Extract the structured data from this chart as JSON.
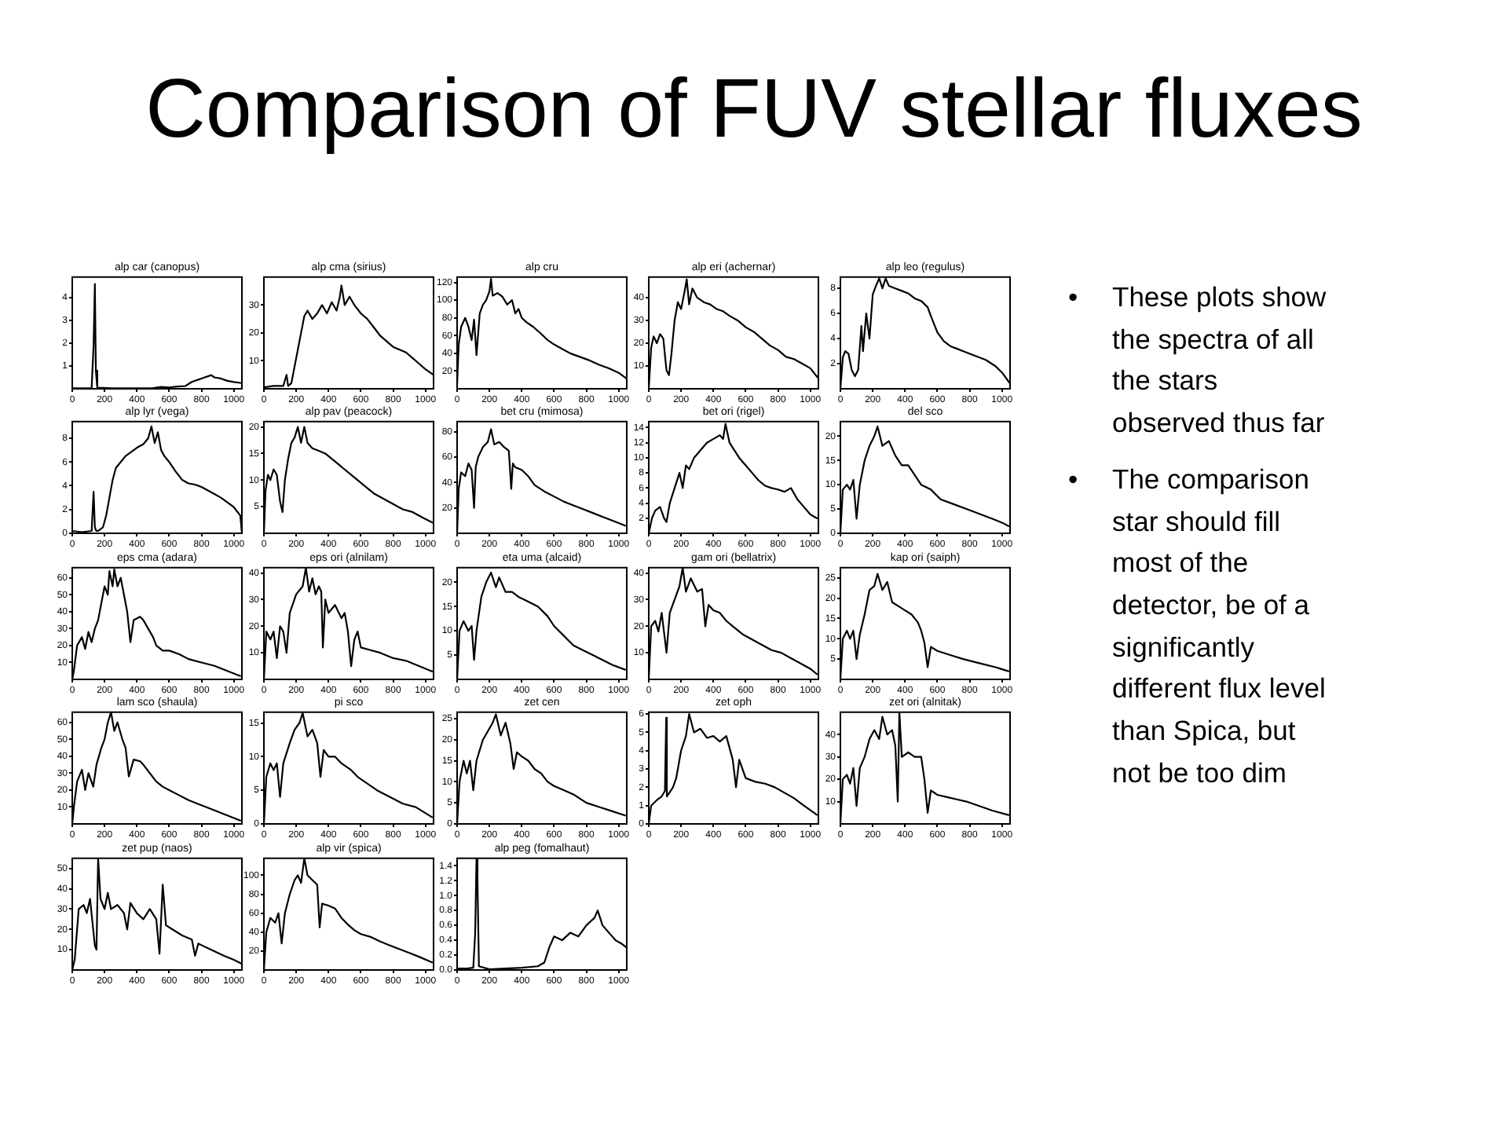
{
  "chart_data": [
    {
      "type": "line",
      "title": "alp car (canopus)",
      "x": [
        0,
        60,
        120,
        132,
        140,
        146,
        155,
        250,
        400,
        500,
        550,
        600,
        650,
        700,
        740,
        780,
        820,
        860,
        880,
        920,
        960,
        1000,
        1050
      ],
      "values": [
        0.02,
        0.02,
        0.03,
        1.9,
        4.6,
        0.8,
        0.05,
        0.02,
        0.02,
        0.03,
        0.08,
        0.06,
        0.1,
        0.12,
        0.3,
        0.4,
        0.5,
        0.6,
        0.5,
        0.45,
        0.35,
        0.3,
        0.25
      ],
      "color": "#000000",
      "xlim": [
        0,
        1050
      ],
      "xticks": [
        0,
        200,
        400,
        600,
        800,
        1000
      ],
      "ylim": [
        0,
        4.9
      ],
      "yticks": [
        1,
        2,
        3,
        4
      ]
    },
    {
      "type": "line",
      "title": "alp cma (sirius)",
      "x": [
        0,
        60,
        120,
        140,
        150,
        170,
        190,
        210,
        230,
        250,
        270,
        300,
        330,
        360,
        390,
        420,
        450,
        470,
        480,
        500,
        530,
        560,
        600,
        640,
        680,
        720,
        760,
        800,
        840,
        880,
        920,
        960,
        1000,
        1050
      ],
      "values": [
        0.5,
        1,
        1,
        5,
        1,
        2,
        8,
        14,
        20,
        26,
        28,
        25,
        27,
        30,
        27,
        31,
        28,
        33,
        37,
        30,
        33,
        30,
        27,
        25,
        22,
        19,
        17,
        15,
        14,
        13,
        11,
        9,
        7,
        5
      ],
      "color": "#000000",
      "xlim": [
        0,
        1050
      ],
      "xticks": [
        0,
        200,
        400,
        600,
        800,
        1000
      ],
      "ylim": [
        0,
        40
      ],
      "yticks": [
        10,
        20,
        30
      ]
    },
    {
      "type": "line",
      "title": "alp cru",
      "x": [
        0,
        10,
        25,
        50,
        70,
        90,
        105,
        120,
        140,
        160,
        180,
        200,
        210,
        220,
        250,
        280,
        310,
        340,
        360,
        380,
        400,
        430,
        470,
        520,
        560,
        600,
        650,
        700,
        760,
        820,
        880,
        940,
        1000,
        1045
      ],
      "values": [
        5,
        50,
        70,
        80,
        70,
        55,
        78,
        38,
        85,
        95,
        100,
        110,
        124,
        105,
        108,
        104,
        95,
        100,
        85,
        90,
        80,
        75,
        70,
        62,
        55,
        50,
        45,
        40,
        36,
        32,
        27,
        23,
        18,
        12
      ],
      "color": "#000000",
      "xlim": [
        0,
        1050
      ],
      "xticks": [
        0,
        200,
        400,
        600,
        800,
        1000
      ],
      "ylim": [
        0,
        126
      ],
      "yticks": [
        20,
        40,
        60,
        80,
        100,
        120
      ]
    },
    {
      "type": "line",
      "title": "alp eri (achernar)",
      "x": [
        0,
        15,
        30,
        50,
        70,
        90,
        110,
        125,
        140,
        160,
        180,
        200,
        220,
        235,
        250,
        270,
        300,
        340,
        380,
        420,
        460,
        500,
        550,
        600,
        650,
        700,
        750,
        800,
        850,
        900,
        950,
        1000,
        1045
      ],
      "values": [
        0,
        18,
        23,
        20,
        24,
        22,
        8,
        6,
        15,
        30,
        38,
        35,
        42,
        48,
        37,
        44,
        40,
        38,
        37,
        35,
        34,
        32,
        30,
        27,
        25,
        22,
        19,
        17,
        14,
        13,
        11,
        9,
        5
      ],
      "color": "#000000",
      "xlim": [
        0,
        1050
      ],
      "xticks": [
        0,
        200,
        400,
        600,
        800,
        1000
      ],
      "ylim": [
        0,
        49
      ],
      "yticks": [
        10,
        20,
        30,
        40
      ]
    },
    {
      "type": "line",
      "title": "alp leo (regulus)",
      "x": [
        0,
        15,
        30,
        50,
        70,
        90,
        110,
        130,
        140,
        160,
        180,
        200,
        220,
        240,
        260,
        280,
        300,
        340,
        380,
        420,
        460,
        500,
        540,
        560,
        600,
        640,
        680,
        720,
        780,
        840,
        900,
        960,
        1000,
        1045
      ],
      "values": [
        0,
        2.5,
        3,
        2.8,
        1.5,
        1,
        1.5,
        5,
        3,
        6,
        4,
        7.5,
        8.2,
        8.8,
        8,
        8.8,
        8.2,
        8,
        7.8,
        7.6,
        7.2,
        7,
        6.5,
        5.8,
        4.5,
        3.8,
        3.4,
        3.2,
        2.9,
        2.6,
        2.3,
        1.8,
        1.3,
        0.5
      ],
      "color": "#000000",
      "xlim": [
        0,
        1050
      ],
      "xticks": [
        0,
        200,
        400,
        600,
        800,
        1000
      ],
      "ylim": [
        0,
        8.9
      ],
      "yticks": [
        2,
        4,
        6,
        8
      ]
    },
    {
      "type": "line",
      "title": "alp lyr (vega)",
      "x": [
        0,
        60,
        120,
        132,
        140,
        148,
        160,
        190,
        210,
        230,
        250,
        270,
        300,
        330,
        360,
        400,
        440,
        470,
        490,
        510,
        530,
        550,
        570,
        600,
        640,
        680,
        720,
        760,
        800,
        840,
        880,
        920,
        960,
        1000,
        1040,
        1050
      ],
      "values": [
        0.2,
        0.1,
        0.2,
        3.5,
        0.5,
        0.2,
        0.2,
        0.5,
        1.5,
        3,
        4.5,
        5.5,
        6,
        6.5,
        6.8,
        7.2,
        7.5,
        8,
        9,
        7.6,
        8.5,
        7,
        6.5,
        6,
        5.2,
        4.5,
        4.2,
        4.1,
        3.9,
        3.6,
        3.3,
        3,
        2.6,
        2.2,
        1.5,
        0
      ],
      "color": "#000000",
      "xlim": [
        0,
        1050
      ],
      "xticks": [
        0,
        200,
        400,
        600,
        800,
        1000
      ],
      "ylim": [
        0,
        9.4
      ],
      "yticks": [
        0,
        2,
        4,
        6,
        8
      ]
    },
    {
      "type": "line",
      "title": "alp pav (peacock)",
      "x": [
        0,
        10,
        25,
        40,
        60,
        80,
        100,
        115,
        130,
        150,
        170,
        190,
        210,
        230,
        250,
        270,
        300,
        340,
        380,
        420,
        460,
        500,
        560,
        620,
        680,
        740,
        800,
        860,
        920,
        980,
        1045
      ],
      "values": [
        0,
        8,
        11,
        10,
        12,
        11,
        6,
        4,
        10,
        14,
        17,
        18,
        20,
        17,
        20,
        17,
        16,
        15.5,
        15,
        14,
        13,
        12,
        10.5,
        9,
        7.5,
        6.5,
        5.5,
        4.5,
        4,
        3,
        2
      ],
      "color": "#000000",
      "xlim": [
        0,
        1050
      ],
      "xticks": [
        0,
        200,
        400,
        600,
        800,
        1000
      ],
      "ylim": [
        0,
        21
      ],
      "yticks": [
        5,
        10,
        15,
        20
      ]
    },
    {
      "type": "line",
      "title": "bet cru (mimosa)",
      "x": [
        0,
        10,
        25,
        50,
        70,
        90,
        105,
        115,
        130,
        160,
        190,
        210,
        230,
        260,
        290,
        320,
        335,
        345,
        360,
        400,
        440,
        480,
        540,
        600,
        660,
        720,
        780,
        840,
        900,
        960,
        1040
      ],
      "values": [
        0,
        35,
        48,
        45,
        55,
        50,
        20,
        52,
        60,
        68,
        72,
        82,
        70,
        72,
        68,
        65,
        35,
        55,
        52,
        50,
        45,
        38,
        33,
        29,
        25,
        22,
        19,
        16,
        13,
        10,
        6
      ],
      "color": "#000000",
      "xlim": [
        0,
        1050
      ],
      "xticks": [
        0,
        200,
        400,
        600,
        800,
        1000
      ],
      "ylim": [
        0,
        88
      ],
      "yticks": [
        20,
        40,
        60,
        80
      ]
    },
    {
      "type": "line",
      "title": "bet ori (rigel)",
      "x": [
        0,
        20,
        40,
        70,
        95,
        110,
        130,
        160,
        190,
        210,
        230,
        250,
        280,
        320,
        360,
        400,
        440,
        460,
        475,
        500,
        530,
        560,
        600,
        640,
        680,
        720,
        760,
        800,
        840,
        880,
        920,
        960,
        1000,
        1040
      ],
      "values": [
        0,
        2,
        3,
        3.5,
        2,
        1.5,
        4,
        6,
        8,
        6,
        9,
        8.5,
        10,
        11,
        12,
        12.5,
        13,
        12.5,
        14.5,
        12,
        11,
        10,
        9,
        8,
        7,
        6.3,
        6,
        5.8,
        5.5,
        6,
        4.5,
        3.5,
        2.5,
        2
      ],
      "color": "#000000",
      "xlim": [
        0,
        1050
      ],
      "xticks": [
        0,
        200,
        400,
        600,
        800,
        1000
      ],
      "ylim": [
        0,
        14.8
      ],
      "yticks": [
        2,
        4,
        6,
        8,
        10,
        12,
        14
      ]
    },
    {
      "type": "line",
      "title": "del sco",
      "x": [
        0,
        15,
        40,
        60,
        80,
        100,
        120,
        150,
        180,
        210,
        230,
        260,
        300,
        340,
        380,
        420,
        460,
        500,
        560,
        620,
        700,
        780,
        860,
        940,
        1000,
        1040
      ],
      "values": [
        0,
        9,
        10,
        9,
        11,
        3,
        10,
        15,
        18,
        20,
        22,
        18,
        19,
        16,
        14,
        14,
        12,
        10,
        9,
        7,
        6,
        5,
        4,
        3,
        2.2,
        1.5
      ],
      "color": "#000000",
      "xlim": [
        0,
        1050
      ],
      "xticks": [
        0,
        200,
        400,
        600,
        800,
        1000
      ],
      "ylim": [
        0,
        23
      ],
      "yticks": [
        0,
        5,
        10,
        15,
        20
      ]
    },
    {
      "type": "line",
      "title": "eps cma (adara)",
      "x": [
        0,
        10,
        30,
        60,
        80,
        100,
        120,
        140,
        160,
        180,
        200,
        220,
        230,
        250,
        260,
        280,
        300,
        320,
        340,
        360,
        380,
        420,
        440,
        470,
        500,
        520,
        560,
        600,
        660,
        720,
        800,
        880,
        960,
        1040
      ],
      "values": [
        0,
        5,
        20,
        25,
        18,
        28,
        22,
        30,
        35,
        45,
        55,
        50,
        64,
        55,
        65,
        55,
        60,
        50,
        40,
        22,
        35,
        37,
        35,
        30,
        25,
        20,
        17,
        17,
        15,
        12,
        10,
        8,
        5,
        2
      ],
      "color": "#000000",
      "xlim": [
        0,
        1050
      ],
      "xticks": [
        0,
        200,
        400,
        600,
        800,
        1000
      ],
      "ylim": [
        0,
        66
      ],
      "yticks": [
        10,
        20,
        30,
        40,
        50,
        60
      ]
    },
    {
      "type": "line",
      "title": "eps ori (alnilam)",
      "x": [
        0,
        15,
        40,
        60,
        80,
        100,
        120,
        140,
        160,
        200,
        240,
        260,
        280,
        300,
        320,
        340,
        355,
        365,
        380,
        400,
        440,
        480,
        500,
        520,
        540,
        560,
        580,
        600,
        660,
        720,
        800,
        880,
        960,
        1040
      ],
      "values": [
        0,
        18,
        15,
        18,
        8,
        20,
        18,
        10,
        25,
        32,
        35,
        42,
        33,
        38,
        32,
        35,
        33,
        12,
        30,
        25,
        28,
        23,
        25,
        18,
        5,
        15,
        18,
        12,
        11,
        10,
        8,
        7,
        5,
        3
      ],
      "color": "#000000",
      "xlim": [
        0,
        1050
      ],
      "xticks": [
        0,
        200,
        400,
        600,
        800,
        1000
      ],
      "ylim": [
        0,
        42
      ],
      "yticks": [
        10,
        20,
        30,
        40
      ]
    },
    {
      "type": "line",
      "title": "eta uma (alcaid)",
      "x": [
        0,
        15,
        40,
        70,
        90,
        105,
        120,
        150,
        180,
        210,
        240,
        260,
        300,
        340,
        380,
        440,
        500,
        560,
        600,
        660,
        720,
        780,
        840,
        900,
        960,
        1040
      ],
      "values": [
        0,
        10,
        12,
        10,
        11,
        4,
        10,
        17,
        20,
        22,
        19,
        21,
        18,
        18,
        17,
        16,
        15,
        13,
        11,
        9,
        7,
        6,
        5,
        4,
        3,
        2
      ],
      "color": "#000000",
      "xlim": [
        0,
        1050
      ],
      "xticks": [
        0,
        200,
        400,
        600,
        800,
        1000
      ],
      "ylim": [
        0,
        23
      ],
      "yticks": [
        5,
        10,
        15,
        20
      ]
    },
    {
      "type": "line",
      "title": "gam ori (bellatrix)",
      "x": [
        0,
        15,
        40,
        60,
        80,
        110,
        130,
        160,
        190,
        210,
        230,
        260,
        300,
        330,
        350,
        370,
        400,
        440,
        480,
        520,
        580,
        640,
        700,
        760,
        820,
        880,
        940,
        1000,
        1040
      ],
      "values": [
        0,
        20,
        22,
        18,
        25,
        10,
        25,
        30,
        35,
        42,
        33,
        38,
        33,
        34,
        20,
        28,
        26,
        25,
        22,
        20,
        17,
        15,
        13,
        11,
        10,
        8,
        6,
        4,
        2
      ],
      "color": "#000000",
      "xlim": [
        0,
        1050
      ],
      "xticks": [
        0,
        200,
        400,
        600,
        800,
        1000
      ],
      "ylim": [
        0,
        42
      ],
      "yticks": [
        10,
        20,
        30,
        40
      ]
    },
    {
      "type": "line",
      "title": "kap ori (saiph)",
      "x": [
        0,
        15,
        40,
        60,
        80,
        100,
        120,
        150,
        180,
        210,
        230,
        260,
        290,
        320,
        360,
        400,
        440,
        480,
        500,
        520,
        540,
        560,
        600,
        680,
        760,
        860,
        960,
        1040
      ],
      "values": [
        0,
        10,
        12,
        10,
        12,
        5,
        11,
        16,
        22,
        23,
        26,
        22,
        24,
        19,
        18,
        17,
        16,
        14,
        12,
        9,
        3,
        8,
        7,
        6,
        5,
        4,
        3,
        2
      ],
      "color": "#000000",
      "xlim": [
        0,
        1050
      ],
      "xticks": [
        0,
        200,
        400,
        600,
        800,
        1000
      ],
      "ylim": [
        0,
        27.5
      ],
      "yticks": [
        5,
        10,
        15,
        20,
        25
      ]
    },
    {
      "type": "line",
      "title": "lam sco (shaula)",
      "x": [
        0,
        10,
        30,
        60,
        80,
        100,
        130,
        150,
        180,
        200,
        220,
        240,
        260,
        280,
        310,
        330,
        350,
        380,
        420,
        440,
        480,
        520,
        560,
        600,
        660,
        720,
        800,
        880,
        960,
        1040
      ],
      "values": [
        0,
        10,
        25,
        32,
        20,
        30,
        22,
        35,
        45,
        50,
        60,
        66,
        55,
        60,
        50,
        45,
        28,
        38,
        37,
        35,
        30,
        25,
        22,
        20,
        17,
        14,
        11,
        8,
        5,
        2
      ],
      "color": "#000000",
      "xlim": [
        0,
        1050
      ],
      "xticks": [
        0,
        200,
        400,
        600,
        800,
        1000
      ],
      "ylim": [
        0,
        66
      ],
      "yticks": [
        10,
        20,
        30,
        40,
        50,
        60
      ]
    },
    {
      "type": "line",
      "title": "pi sco",
      "x": [
        0,
        15,
        40,
        60,
        80,
        100,
        120,
        160,
        190,
        220,
        240,
        270,
        300,
        330,
        350,
        370,
        400,
        440,
        480,
        540,
        580,
        640,
        700,
        780,
        860,
        940,
        1040
      ],
      "values": [
        0,
        7,
        9,
        8,
        9,
        4,
        9,
        12,
        14,
        15,
        16.5,
        13,
        14,
        12,
        7,
        11,
        10,
        10,
        9,
        8,
        7,
        6,
        5,
        4,
        3,
        2.5,
        1
      ],
      "color": "#000000",
      "xlim": [
        0,
        1050
      ],
      "xticks": [
        0,
        200,
        400,
        600,
        800,
        1000
      ],
      "ylim": [
        0,
        16.6
      ],
      "yticks": [
        0,
        5,
        10,
        15
      ]
    },
    {
      "type": "line",
      "title": "zet cen",
      "x": [
        0,
        15,
        40,
        60,
        80,
        100,
        120,
        160,
        190,
        220,
        240,
        270,
        300,
        330,
        350,
        370,
        400,
        440,
        480,
        520,
        560,
        600,
        660,
        720,
        800,
        880,
        960,
        1040
      ],
      "values": [
        0,
        10,
        15,
        12,
        15,
        8,
        15,
        20,
        22,
        24,
        26,
        21,
        24,
        19,
        13,
        17,
        16,
        15,
        13,
        12,
        10,
        9,
        8,
        7,
        5,
        4,
        3,
        2
      ],
      "color": "#000000",
      "xlim": [
        0,
        1050
      ],
      "xticks": [
        0,
        200,
        400,
        600,
        800,
        1000
      ],
      "ylim": [
        0,
        26.5
      ],
      "yticks": [
        0,
        5,
        10,
        15,
        20,
        25
      ]
    },
    {
      "type": "line",
      "title": "zet oph",
      "x": [
        0,
        15,
        50,
        80,
        100,
        108,
        112,
        120,
        150,
        170,
        200,
        230,
        250,
        280,
        320,
        360,
        400,
        440,
        480,
        520,
        540,
        560,
        600,
        660,
        720,
        780,
        840,
        900,
        960,
        1040
      ],
      "values": [
        0,
        1,
        1.3,
        1.5,
        1.8,
        5.8,
        1.5,
        1.6,
        2,
        2.5,
        4,
        4.8,
        6,
        5,
        5.2,
        4.7,
        4.8,
        4.5,
        4.8,
        3.5,
        2,
        3.5,
        2.5,
        2.3,
        2.2,
        2,
        1.7,
        1.4,
        1,
        0.5
      ],
      "color": "#000000",
      "xlim": [
        0,
        1050
      ],
      "xticks": [
        0,
        200,
        400,
        600,
        800,
        1000
      ],
      "ylim": [
        0,
        6.1
      ],
      "yticks": [
        0,
        1,
        2,
        3,
        4,
        5,
        6
      ]
    },
    {
      "type": "line",
      "title": "zet ori (alnitak)",
      "x": [
        0,
        15,
        40,
        60,
        80,
        100,
        120,
        150,
        180,
        210,
        240,
        260,
        290,
        320,
        340,
        355,
        365,
        380,
        420,
        460,
        500,
        520,
        540,
        560,
        600,
        660,
        720,
        780,
        860,
        940,
        1040
      ],
      "values": [
        0,
        20,
        22,
        18,
        25,
        8,
        25,
        30,
        38,
        42,
        38,
        48,
        40,
        42,
        35,
        10,
        50,
        30,
        32,
        30,
        30,
        20,
        5,
        15,
        13,
        12,
        11,
        10,
        8,
        6,
        4
      ],
      "color": "#000000",
      "xlim": [
        0,
        1050
      ],
      "xticks": [
        0,
        200,
        400,
        600,
        800,
        1000
      ],
      "ylim": [
        0,
        50
      ],
      "yticks": [
        10,
        20,
        30,
        40
      ]
    },
    {
      "type": "line",
      "title": "zet pup (naos)",
      "x": [
        0,
        15,
        40,
        70,
        90,
        110,
        140,
        150,
        160,
        175,
        200,
        220,
        240,
        280,
        320,
        340,
        360,
        400,
        440,
        480,
        520,
        540,
        560,
        580,
        620,
        680,
        740,
        760,
        780,
        860,
        940,
        1000,
        1050
      ],
      "values": [
        0,
        5,
        30,
        32,
        28,
        35,
        12,
        10,
        55,
        35,
        30,
        38,
        30,
        32,
        28,
        20,
        33,
        28,
        25,
        30,
        25,
        8,
        42,
        22,
        20,
        17,
        15,
        7,
        13,
        10,
        7,
        5,
        3
      ],
      "color": "#000000",
      "xlim": [
        0,
        1050
      ],
      "xticks": [
        0,
        200,
        400,
        600,
        800,
        1000
      ],
      "ylim": [
        0,
        55
      ],
      "yticks": [
        10,
        20,
        30,
        40,
        50
      ]
    },
    {
      "type": "line",
      "title": "alp vir (spica)",
      "x": [
        0,
        15,
        40,
        70,
        90,
        110,
        130,
        160,
        190,
        210,
        230,
        250,
        270,
        300,
        330,
        345,
        360,
        400,
        440,
        480,
        520,
        560,
        600,
        660,
        720,
        780,
        840,
        900,
        960,
        1040
      ],
      "values": [
        0,
        40,
        55,
        50,
        60,
        28,
        60,
        80,
        95,
        100,
        92,
        118,
        100,
        95,
        90,
        45,
        70,
        68,
        65,
        55,
        48,
        42,
        38,
        35,
        30,
        26,
        22,
        18,
        14,
        8
      ],
      "color": "#000000",
      "xlim": [
        0,
        1050
      ],
      "xticks": [
        0,
        200,
        400,
        600,
        800,
        1000
      ],
      "ylim": [
        0,
        118
      ],
      "yticks": [
        20,
        40,
        60,
        80,
        100
      ]
    },
    {
      "type": "line",
      "title": "alp peg (fomalhaut)",
      "x": [
        0,
        60,
        100,
        112,
        120,
        126,
        135,
        200,
        300,
        400,
        500,
        540,
        570,
        600,
        650,
        700,
        750,
        800,
        850,
        870,
        900,
        940,
        980,
        1020,
        1050
      ],
      "values": [
        0.02,
        0.02,
        0.03,
        0.5,
        1.5,
        1.2,
        0.05,
        0.01,
        0.02,
        0.03,
        0.05,
        0.1,
        0.3,
        0.45,
        0.4,
        0.5,
        0.45,
        0.6,
        0.7,
        0.8,
        0.6,
        0.5,
        0.4,
        0.35,
        0.3
      ],
      "color": "#000000",
      "xlim": [
        0,
        1050
      ],
      "xticks": [
        0,
        200,
        400,
        600,
        800,
        1000
      ],
      "ylim": [
        0,
        1.5
      ],
      "yticks": [
        {
          "value": 0,
          "label": "0.0"
        },
        {
          "value": 0.2,
          "label": "0.2"
        },
        {
          "value": 0.4,
          "label": "0.4"
        },
        {
          "value": 0.6,
          "label": "0.6"
        },
        {
          "value": 0.8,
          "label": "0.8"
        },
        {
          "value": 1,
          "label": "1.0"
        },
        {
          "value": 1.2,
          "label": "1.2"
        },
        {
          "value": 1.4,
          "label": "1.4"
        }
      ]
    },
    {
      "type": "other",
      "title": "Comparison of FUV stellar fluxes",
      "annotations": [
        "• These plots show the spectra of all the stars observed thus far",
        "• The comparison star should fill most of the detector, be of a significantly different flux level than Spica, but not be too dim"
      ]
    }
  ]
}
